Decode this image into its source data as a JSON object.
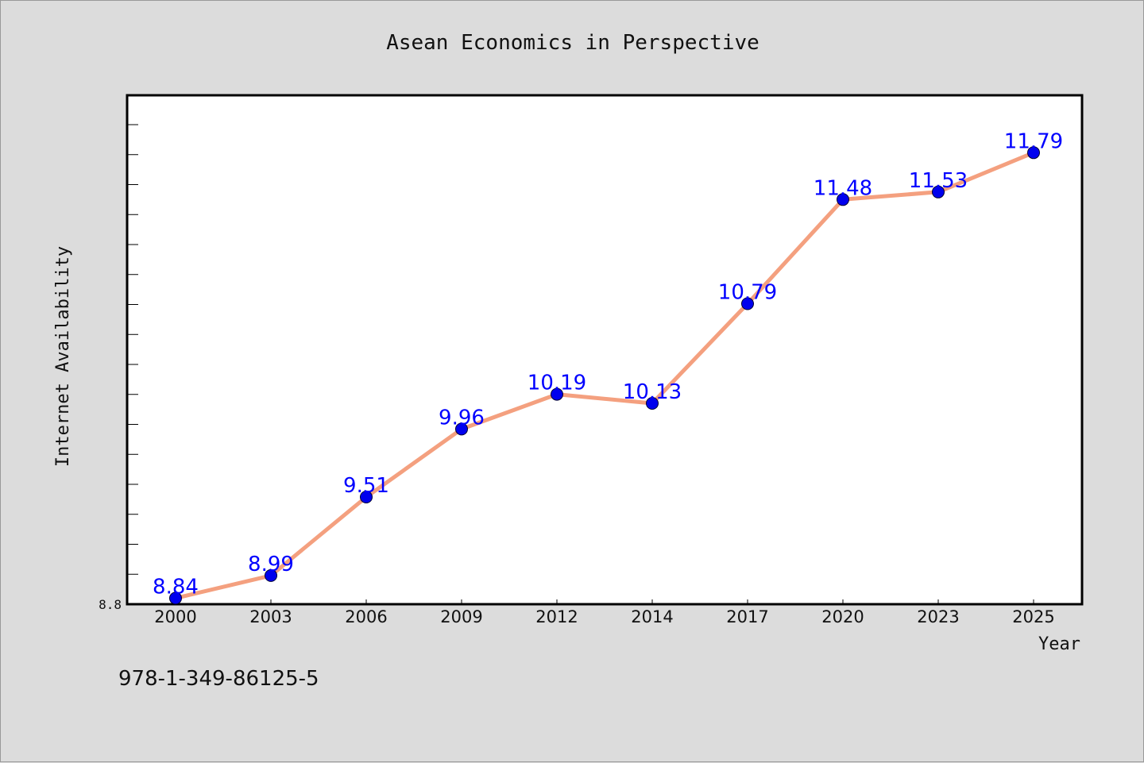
{
  "chart_data": {
    "type": "line",
    "title": "Asean Economics in Perspective",
    "xlabel": "Year",
    "ylabel": "Internet Availability",
    "categories": [
      "2000",
      "2003",
      "2006",
      "2009",
      "2012",
      "2014",
      "2017",
      "2020",
      "2023",
      "2025"
    ],
    "series": [
      {
        "values": [
          8.84,
          8.99,
          9.51,
          9.96,
          10.19,
          10.13,
          10.79,
          11.48,
          11.53,
          11.79
        ],
        "data_labels": [
          "8.84",
          "8.99",
          "9.51",
          "9.96",
          "10.19",
          "10.13",
          "10.79",
          "11.48",
          "11.53",
          "11.79"
        ]
      }
    ],
    "yticks": [
      "8.8"
    ],
    "ylim": [
      8.8,
      12.2
    ],
    "grid": false,
    "legend": "none",
    "colors": {
      "line": "#f4a07f",
      "marker": "#0000ee",
      "data_label": "#0000ff",
      "plot_background": "#ffffff",
      "page_background": "#dcdcdc"
    }
  },
  "footer": {
    "code": "978-1-349-86125-5"
  }
}
